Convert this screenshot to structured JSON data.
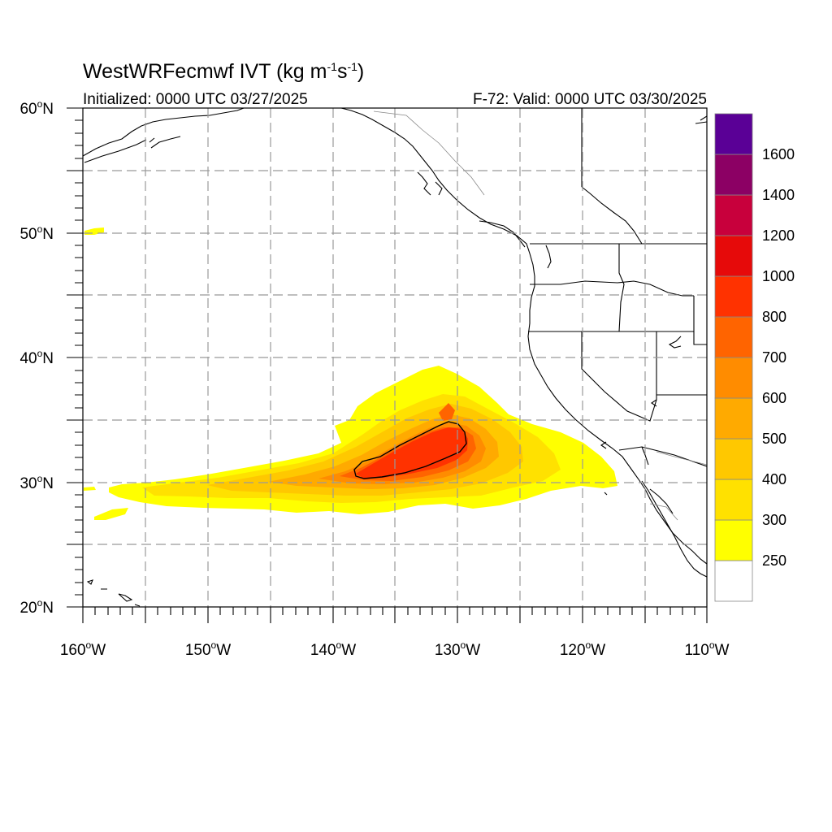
{
  "title": {
    "main": "WestWRFecmwf IVT (kg m",
    "sup1": "-1",
    "mid": "s",
    "sup2": "-1",
    "end": ")"
  },
  "initialized": "Initialized: 0000 UTC 03/27/2025",
  "valid": "F-72: Valid: 0000 UTC 03/30/2025",
  "lat_labels": [
    {
      "deg": "60",
      "hemi": "N"
    },
    {
      "deg": "50",
      "hemi": "N"
    },
    {
      "deg": "40",
      "hemi": "N"
    },
    {
      "deg": "30",
      "hemi": "N"
    },
    {
      "deg": "20",
      "hemi": "N"
    }
  ],
  "lon_labels": [
    {
      "deg": "160",
      "hemi": "W"
    },
    {
      "deg": "150",
      "hemi": "W"
    },
    {
      "deg": "140",
      "hemi": "W"
    },
    {
      "deg": "130",
      "hemi": "W"
    },
    {
      "deg": "120",
      "hemi": "W"
    },
    {
      "deg": "110",
      "hemi": "W"
    }
  ],
  "colorbar": {
    "levels": [
      "250",
      "300",
      "400",
      "500",
      "600",
      "700",
      "800",
      "1000",
      "1200",
      "1400",
      "1600"
    ],
    "colors": [
      "#ffffff",
      "#ffff00",
      "#ffe100",
      "#ffc800",
      "#ffaa00",
      "#ff8c00",
      "#ff6400",
      "#ff3200",
      "#e60a0a",
      "#c8003c",
      "#8c0064",
      "#5a0096"
    ]
  },
  "map": {
    "lon_range": [
      -160,
      -110
    ],
    "lat_range": [
      20,
      60
    ],
    "grid": "dashed every 5 degrees",
    "contour_level": "1000"
  }
}
